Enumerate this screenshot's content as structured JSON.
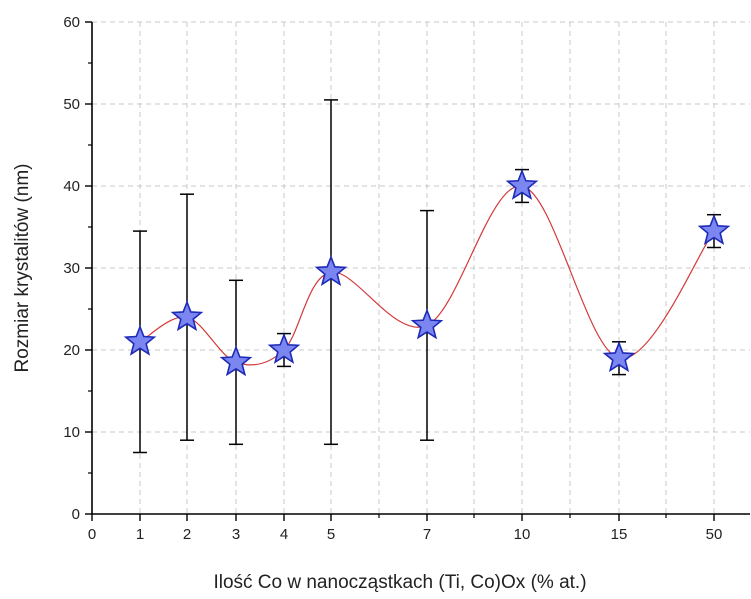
{
  "chart_data": {
    "type": "scatter",
    "xlabel": "Ilość Co w nanocząstkach (Ti, Co)Ox (% at.)",
    "ylabel": "Rozmiar krystalitów (nm)",
    "ylim": [
      0,
      60
    ],
    "yticks": [
      0,
      10,
      20,
      30,
      40,
      50,
      60
    ],
    "xtick_labels": [
      "0",
      "1",
      "2",
      "3",
      "4",
      "5",
      "7",
      "10",
      "15",
      "50"
    ],
    "grid": true,
    "smooth_line": true,
    "marker": "star",
    "colors": {
      "marker_fill": "#7b86f0",
      "marker_stroke": "#1e2bb8",
      "line": "#d43a3a",
      "error_bar": "#000000",
      "grid": "#c8c8c8"
    },
    "points": [
      {
        "x": "1",
        "y": 21,
        "err_low": 7.5,
        "err_high": 34.5
      },
      {
        "x": "2",
        "y": 24,
        "err_low": 9,
        "err_high": 39
      },
      {
        "x": "3",
        "y": 18.5,
        "err_low": 8.5,
        "err_high": 28.5
      },
      {
        "x": "4",
        "y": 20,
        "err_low": 18,
        "err_high": 22
      },
      {
        "x": "5",
        "y": 29.5,
        "err_low": 8.5,
        "err_high": 50.5
      },
      {
        "x": "7",
        "y": 23,
        "err_low": 9,
        "err_high": 37
      },
      {
        "x": "10",
        "y": 40,
        "err_low": 38,
        "err_high": 42
      },
      {
        "x": "15",
        "y": 19,
        "err_low": 17,
        "err_high": 21
      },
      {
        "x": "50",
        "y": 34.5,
        "err_low": 32.5,
        "err_high": 36.5
      }
    ]
  }
}
